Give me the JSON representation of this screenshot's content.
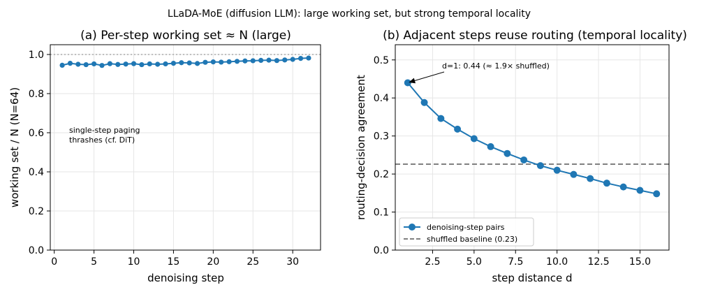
{
  "suptitle": "LLaDA-MoE (diffusion LLM): large working set, but strong temporal locality",
  "chart_data": [
    {
      "type": "line",
      "title": "(a) Per-step working set ≈ N (large)",
      "xlabel": "denoising step",
      "ylabel": "working set / N  (N=64)",
      "xlim": [
        -0.5,
        33.5
      ],
      "ylim": [
        0,
        1.05
      ],
      "xticks": [
        0,
        5,
        10,
        15,
        20,
        25,
        30
      ],
      "yticks": [
        0.0,
        0.2,
        0.4,
        0.6,
        0.8,
        1.0
      ],
      "ytick_labels": [
        "0.0",
        "0.2",
        "0.4",
        "0.6",
        "0.8",
        "1.0"
      ],
      "grid": true,
      "reference_line": {
        "y": 1.0,
        "style": "dotted",
        "color": "#aaaaaa"
      },
      "color": "#1f77b4",
      "x": [
        1,
        2,
        3,
        4,
        5,
        6,
        7,
        8,
        9,
        10,
        11,
        12,
        13,
        14,
        15,
        16,
        17,
        18,
        19,
        20,
        21,
        22,
        23,
        24,
        25,
        26,
        27,
        28,
        29,
        30,
        31,
        32
      ],
      "values": [
        0.945,
        0.955,
        0.95,
        0.948,
        0.952,
        0.944,
        0.953,
        0.949,
        0.951,
        0.953,
        0.948,
        0.952,
        0.95,
        0.952,
        0.955,
        0.958,
        0.957,
        0.954,
        0.96,
        0.962,
        0.961,
        0.963,
        0.965,
        0.967,
        0.968,
        0.97,
        0.971,
        0.969,
        0.972,
        0.975,
        0.98,
        0.982
      ],
      "annotation": {
        "lines": [
          "single-step paging",
          "thrashes (cf. DiT)"
        ],
        "x": 2,
        "y": 0.6
      }
    },
    {
      "type": "line",
      "title": "(b) Adjacent steps reuse routing (temporal locality)",
      "xlabel": "step distance d",
      "ylabel": "routing-decision agreement",
      "xlim": [
        0.25,
        16.75
      ],
      "ylim": [
        0,
        0.54
      ],
      "xticks": [
        2.5,
        5.0,
        7.5,
        10.0,
        12.5,
        15.0
      ],
      "xtick_labels": [
        "2.5",
        "5.0",
        "7.5",
        "10.0",
        "12.5",
        "15.0"
      ],
      "yticks": [
        0.0,
        0.1,
        0.2,
        0.3,
        0.4,
        0.5
      ],
      "ytick_labels": [
        "0.0",
        "0.1",
        "0.2",
        "0.3",
        "0.4",
        "0.5"
      ],
      "grid": true,
      "legend_position": "lower-left",
      "series": [
        {
          "name": "denoising-step pairs",
          "color": "#1f77b4",
          "x": [
            1,
            2,
            3,
            4,
            5,
            6,
            7,
            8,
            9,
            10,
            11,
            12,
            13,
            14,
            15,
            16
          ],
          "values": [
            0.44,
            0.388,
            0.346,
            0.318,
            0.293,
            0.272,
            0.254,
            0.237,
            0.222,
            0.21,
            0.199,
            0.188,
            0.176,
            0.166,
            0.157,
            0.148
          ]
        }
      ],
      "baseline": {
        "name": "shuffled baseline (0.23)",
        "value": 0.226,
        "color": "#808080",
        "style": "dashed"
      },
      "annotation": {
        "text": "d=1: 0.44  (≈ 1.9× shuffled)",
        "point": [
          1,
          0.44
        ],
        "text_at": [
          3,
          0.475
        ]
      }
    }
  ]
}
